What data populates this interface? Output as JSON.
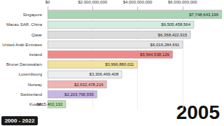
{
  "chart_data": {
    "type": "bar",
    "orientation": "horizontal",
    "categories": [
      "Singapore",
      "Macao SAR, China",
      "Qatar",
      "United Arab Emirates",
      "Ireland",
      "Brunei Darussalam",
      "Luxembourg",
      "Norway",
      "Switzerland",
      "Kuwait"
    ],
    "values": [
      7748643196,
      6505458564,
      6358422915,
      6016284691,
      5564538126,
      3996880011,
      3306469408,
      2632478216,
      2203795555,
      815402132
    ],
    "value_labels": [
      "$7,748,643,196",
      "$6,505,458,564",
      "$6,358,422,915",
      "$6,016,284,691",
      "$5,564,538,126",
      "$3,996,880,011",
      "$3,306,469,408",
      "$2,632,478,216",
      "$2,203,795,555",
      "$815,402,132"
    ],
    "colors": [
      "#a9d6b5",
      "#d3ede0",
      "#dcdcdc",
      "#e6e6e6",
      "#f08a8a",
      "#f3e39a",
      "#eeeeee",
      "#f2b3b3",
      "#c8b6e6",
      "#b8dfae"
    ],
    "xlim": [
      0,
      7748643196
    ],
    "xticks": [
      {
        "value": 0,
        "label": "$0"
      },
      {
        "value": 2000000000,
        "label": "$2,000,000,000"
      },
      {
        "value": 4000000000,
        "label": "$4,000,000,000"
      },
      {
        "value": 6000000000,
        "label": "$6,000,000,000"
      }
    ],
    "grid": true,
    "data_labels": true,
    "annotations": [
      "2005",
      "2000 - 2022"
    ]
  }
}
